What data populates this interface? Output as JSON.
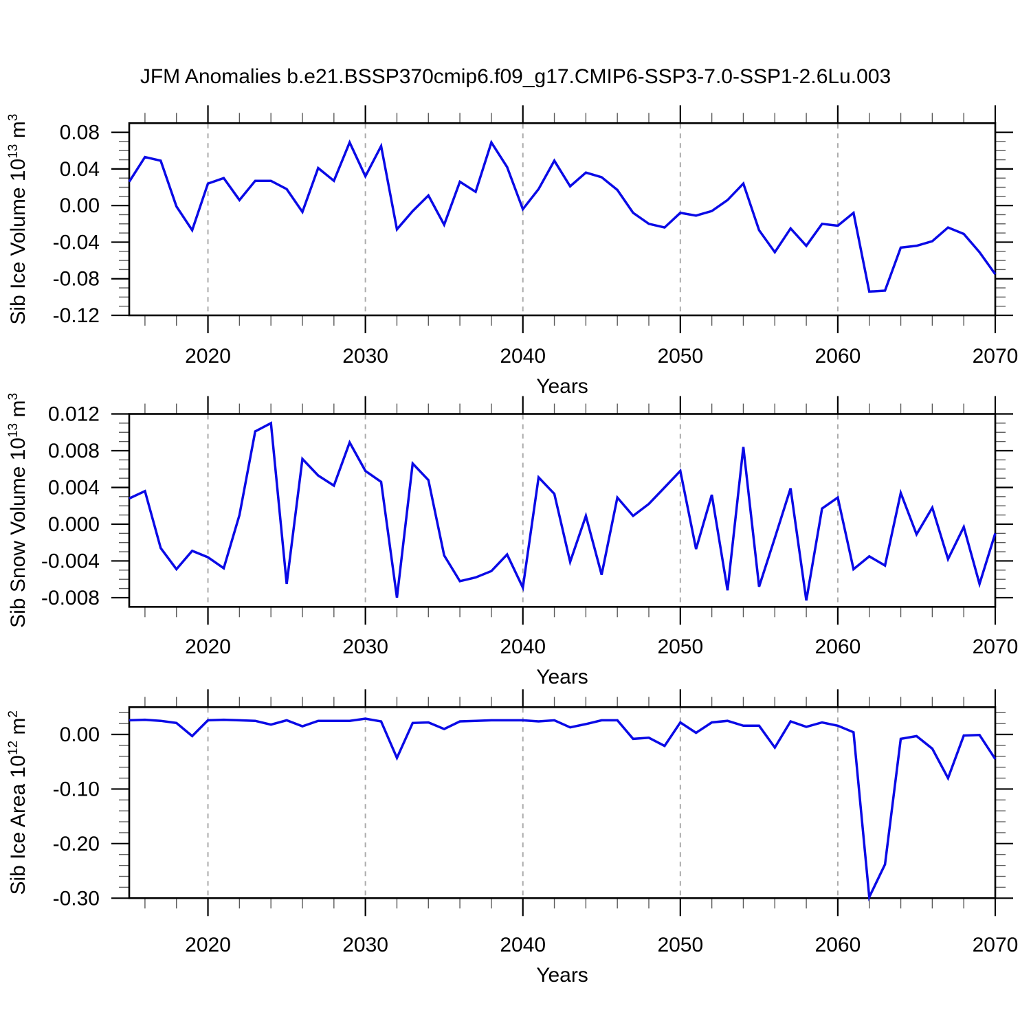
{
  "title": "JFM Anomalies b.e21.BSSP370cmip6.f09_g17.CMIP6-SSP3-7.0-SSP1-2.6Lu.003",
  "xlabel": "Years",
  "colors": {
    "line": "#0a0ae6",
    "grid": "#ababab",
    "axis": "#000000"
  },
  "x_range": [
    2015,
    2070
  ],
  "x_step_years": 1,
  "x_minor_tick_step": 2,
  "grid_years": [
    2020,
    2030,
    2040,
    2050,
    2060
  ],
  "xticks": [
    {
      "v": 2020,
      "label": "2020"
    },
    {
      "v": 2030,
      "label": "2030"
    },
    {
      "v": 2040,
      "label": "2040"
    },
    {
      "v": 2050,
      "label": "2050"
    },
    {
      "v": 2060,
      "label": "2060"
    },
    {
      "v": 2070,
      "label": "2070"
    }
  ],
  "chart_data": [
    {
      "type": "line",
      "name": "sib-ice-volume",
      "ylabel_text": "Sib Ice Volume 10^13 m^3",
      "ylabel_parts": [
        [
          "Sib Ice Volume 10",
          0
        ],
        [
          "13",
          1
        ],
        [
          " m",
          0
        ],
        [
          "3",
          1
        ]
      ],
      "ylim": [
        -0.12,
        0.09
      ],
      "minor_step": 0.01,
      "yticks": [
        {
          "v": 0.08,
          "label": "0.08"
        },
        {
          "v": 0.04,
          "label": "0.04"
        },
        {
          "v": 0.0,
          "label": "0.00"
        },
        {
          "v": -0.04,
          "label": "-0.04"
        },
        {
          "v": -0.08,
          "label": "-0.08"
        },
        {
          "v": -0.12,
          "label": "-0.12"
        }
      ],
      "values": [
        0.026,
        0.053,
        0.049,
        -0.001,
        -0.027,
        0.024,
        0.03,
        0.006,
        0.027,
        0.027,
        0.018,
        -0.007,
        0.041,
        0.027,
        0.069,
        0.032,
        0.065,
        -0.026,
        -0.006,
        0.011,
        -0.021,
        0.026,
        0.015,
        0.069,
        0.042,
        -0.004,
        0.018,
        0.049,
        0.021,
        0.036,
        0.031,
        0.017,
        -0.008,
        -0.02,
        -0.024,
        -0.008,
        -0.011,
        -0.006,
        0.006,
        0.024,
        -0.027,
        -0.051,
        -0.025,
        -0.044,
        -0.02,
        -0.022,
        -0.008,
        -0.094,
        -0.093,
        -0.046,
        -0.044,
        -0.039,
        -0.024,
        -0.031,
        -0.051,
        -0.075
      ]
    },
    {
      "type": "line",
      "name": "sib-snow-volume",
      "ylabel_text": "Sib Snow Volume 10^13 m^3",
      "ylabel_parts": [
        [
          "Sib Snow Volume 10",
          0
        ],
        [
          "13",
          1
        ],
        [
          " m",
          0
        ],
        [
          "3",
          1
        ]
      ],
      "ylim": [
        -0.009,
        0.012
      ],
      "minor_step": 0.001,
      "yticks": [
        {
          "v": 0.012,
          "label": "0.012"
        },
        {
          "v": 0.008,
          "label": "0.008"
        },
        {
          "v": 0.004,
          "label": "0.004"
        },
        {
          "v": 0.0,
          "label": "0.000"
        },
        {
          "v": -0.004,
          "label": "-0.004"
        },
        {
          "v": -0.008,
          "label": "-0.008"
        }
      ],
      "values": [
        0.0028,
        0.0036,
        -0.0026,
        -0.0049,
        -0.0029,
        -0.0036,
        -0.0048,
        0.001,
        0.0101,
        0.011,
        -0.0065,
        0.0071,
        0.0053,
        0.0042,
        0.0089,
        0.0058,
        0.0046,
        -0.008,
        0.0066,
        0.0048,
        -0.0034,
        -0.0062,
        -0.0058,
        -0.0051,
        -0.0033,
        -0.0069,
        0.0051,
        0.0033,
        -0.0041,
        0.0009,
        -0.0055,
        0.0029,
        0.0009,
        0.0022,
        0.004,
        0.0058,
        -0.0027,
        0.0032,
        -0.0072,
        0.0084,
        -0.0068,
        -0.0015,
        0.0039,
        -0.0083,
        0.0017,
        0.0029,
        -0.0049,
        -0.0035,
        -0.0045,
        0.0034,
        -0.0011,
        0.0018,
        -0.0038,
        -0.0003,
        -0.0065,
        -0.001
      ]
    },
    {
      "type": "line",
      "name": "sib-ice-area",
      "ylabel_text": "Sib Ice Area 10^12 m^2",
      "ylabel_parts": [
        [
          "Sib Ice Area 10",
          0
        ],
        [
          "12",
          1
        ],
        [
          " m",
          0
        ],
        [
          "2",
          1
        ]
      ],
      "ylim": [
        -0.3,
        0.05
      ],
      "minor_step": 0.02,
      "yticks": [
        {
          "v": 0.0,
          "label": "0.00"
        },
        {
          "v": -0.1,
          "label": "-0.10"
        },
        {
          "v": -0.2,
          "label": "-0.20"
        },
        {
          "v": -0.3,
          "label": "-0.30"
        }
      ],
      "values": [
        0.026,
        0.027,
        0.025,
        0.021,
        -0.003,
        0.026,
        0.027,
        0.026,
        0.025,
        0.018,
        0.026,
        0.015,
        0.025,
        0.025,
        0.025,
        0.029,
        0.024,
        -0.043,
        0.021,
        0.022,
        0.01,
        0.024,
        0.025,
        0.026,
        0.026,
        0.026,
        0.024,
        0.026,
        0.013,
        0.019,
        0.026,
        0.026,
        -0.008,
        -0.006,
        -0.021,
        0.022,
        0.003,
        0.022,
        0.025,
        0.016,
        0.016,
        -0.024,
        0.024,
        0.014,
        0.022,
        0.016,
        0.004,
        -0.298,
        -0.238,
        -0.008,
        -0.003,
        -0.026,
        -0.08,
        -0.002,
        -0.001,
        -0.045
      ]
    }
  ]
}
